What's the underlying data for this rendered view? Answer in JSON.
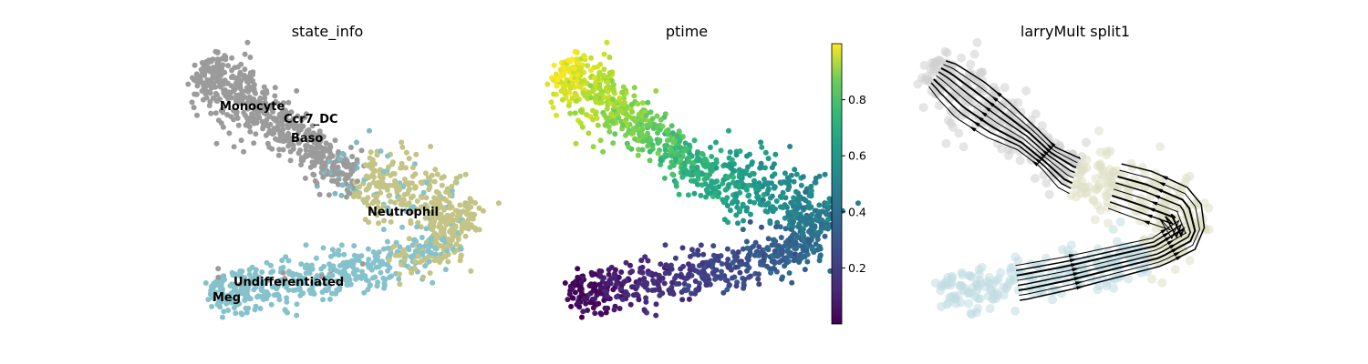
{
  "chart_data": [
    {
      "type": "scatter",
      "title": "state_info",
      "xlabel": "",
      "ylabel": "",
      "grid": false,
      "categories": [
        "Monocyte",
        "Ccr7_DC",
        "Baso",
        "Neutrophil",
        "Undifferentiated",
        "Meg"
      ],
      "colors": {
        "Monocyte": "#9b9b9b",
        "Ccr7_DC": "#7fb9c2",
        "Baso": "#9b9b9b",
        "Neutrophil": "#c3c486",
        "Undifferentiated": "#86c2cc",
        "Meg": "#86c2cc"
      },
      "labels": [
        "Monocyte",
        "Ccr7_DC",
        "Baso",
        "Neutrophil",
        "Undifferentiated",
        "Meg"
      ]
    },
    {
      "type": "scatter",
      "title": "ptime",
      "xlabel": "",
      "ylabel": "",
      "grid": false,
      "colormap": "viridis",
      "colorbar": {
        "range": [
          0.0,
          1.0
        ],
        "ticks": [
          0.2,
          0.4,
          0.6,
          0.8
        ],
        "tick_labels": [
          "0.2",
          "0.4",
          "0.6",
          "0.8"
        ]
      }
    },
    {
      "type": "streamplot",
      "title": "larryMult split1",
      "xlabel": "",
      "ylabel": "",
      "grid": false,
      "background_colors": [
        "#cfcfcf",
        "#dfe0c4",
        "#bfdde2"
      ],
      "stream_color": "#000000"
    }
  ]
}
